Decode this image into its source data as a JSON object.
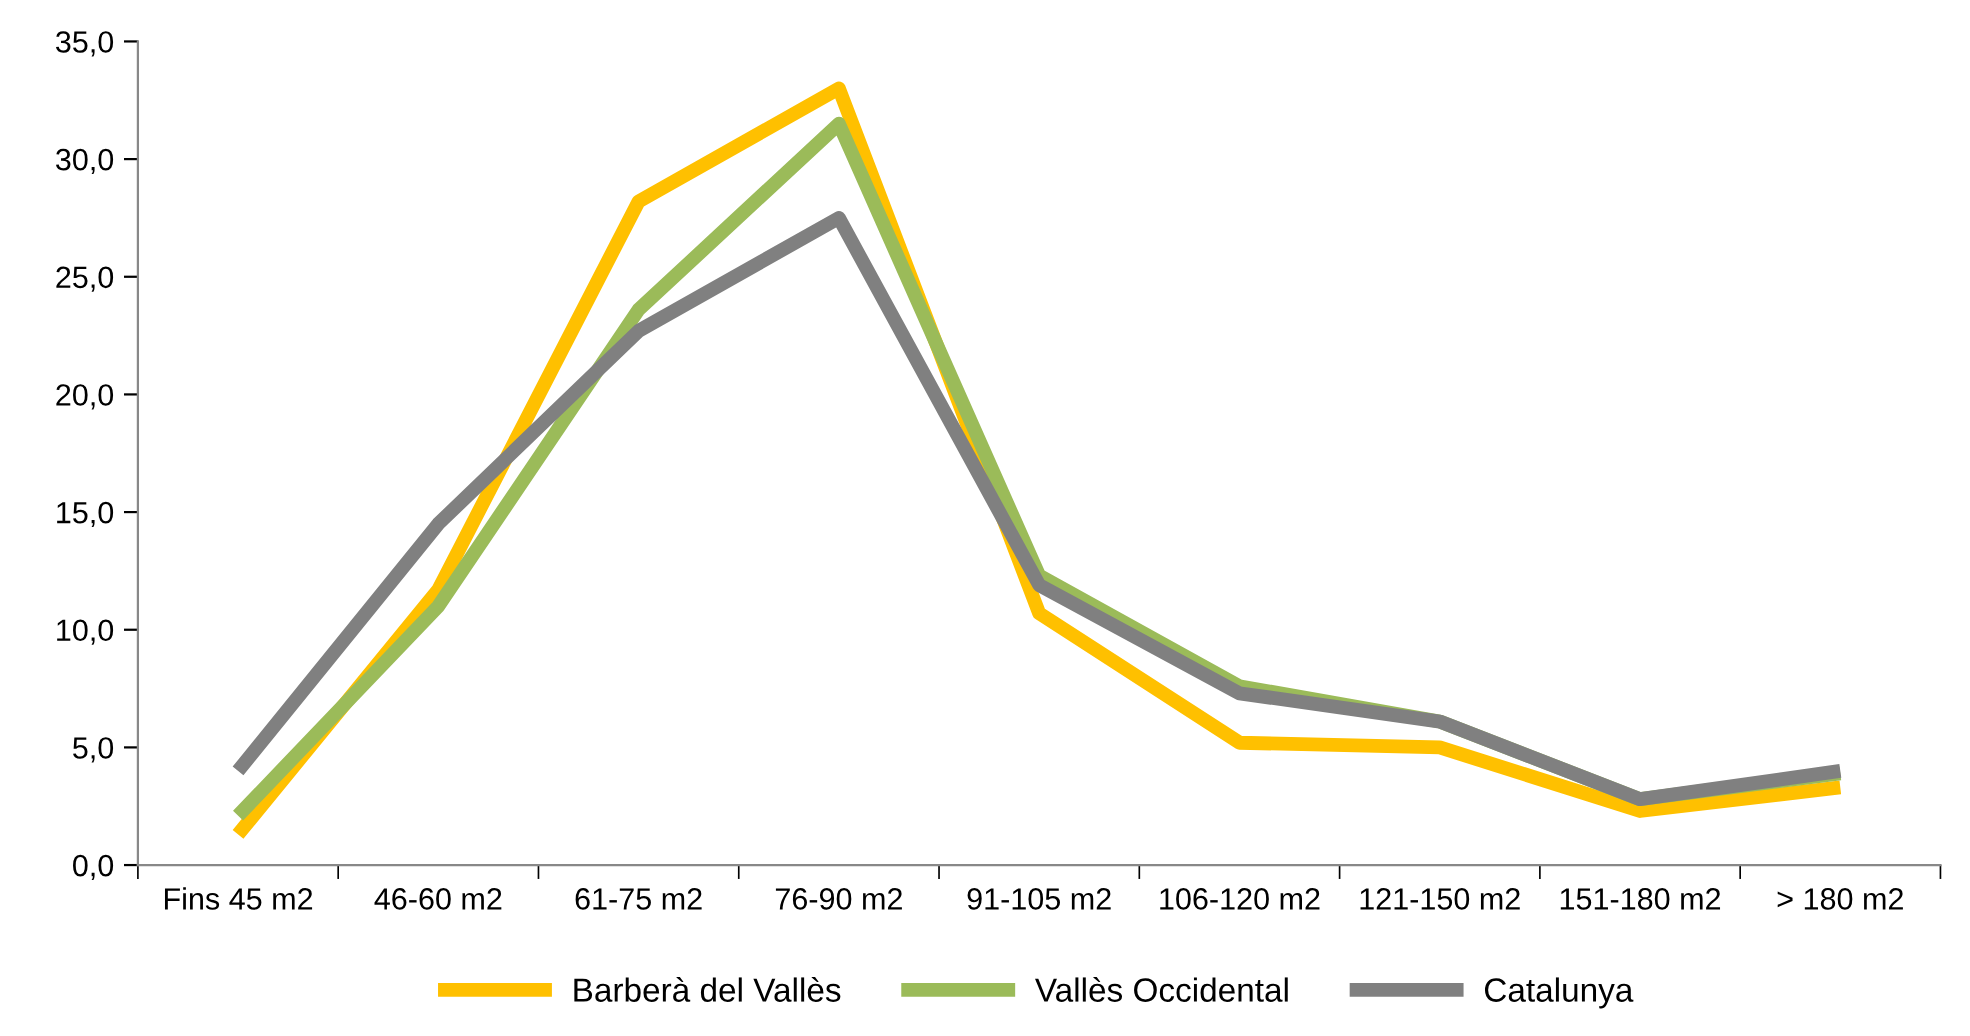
{
  "chart_data": {
    "type": "line",
    "categories": [
      "Fins 45 m2",
      "46-60 m2",
      "61-75 m2",
      "76-90 m2",
      "91-105 m2",
      "106-120 m2",
      "121-150 m2",
      "151-180 m2",
      "> 180 m2"
    ],
    "series": [
      {
        "name": "Barberà del Vallès",
        "color": "#ffc000",
        "values": [
          1.3,
          11.7,
          28.2,
          33.0,
          10.7,
          5.2,
          5.0,
          2.3,
          3.3
        ]
      },
      {
        "name": "Vallès Occidental",
        "color": "#9bbb59",
        "values": [
          2.1,
          11.0,
          23.6,
          31.5,
          12.3,
          7.6,
          6.1,
          2.8,
          3.9
        ]
      },
      {
        "name": "Catalunya",
        "color": "#808080",
        "values": [
          4.0,
          14.5,
          22.7,
          27.5,
          11.9,
          7.3,
          6.1,
          2.8,
          4.0
        ]
      }
    ],
    "ylim": [
      0,
      35
    ],
    "yticks": [
      {
        "value": 0,
        "label": "0,0"
      },
      {
        "value": 5,
        "label": "5,0"
      },
      {
        "value": 10,
        "label": "10,0"
      },
      {
        "value": 15,
        "label": "15,0"
      },
      {
        "value": 20,
        "label": "20,0"
      },
      {
        "value": 25,
        "label": "25,0"
      },
      {
        "value": 30,
        "label": "30,0"
      },
      {
        "value": 35,
        "label": "35,0"
      }
    ],
    "legend": "bottom",
    "grid": false,
    "marker": "none",
    "line_style": "solid"
  }
}
